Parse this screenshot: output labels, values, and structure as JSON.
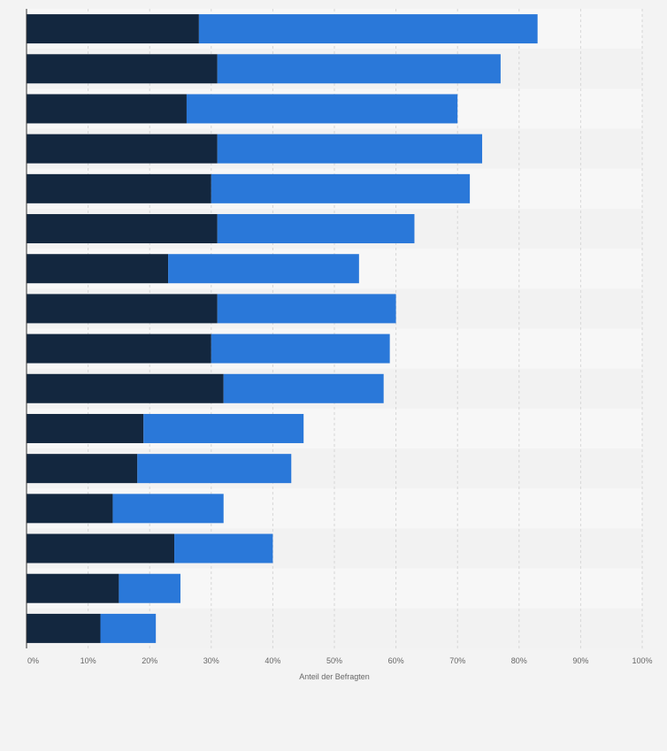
{
  "chart_data": {
    "type": "bar",
    "orientation": "horizontal",
    "stacked": true,
    "xlabel": "Anteil der Befragten",
    "xlim": [
      0,
      100
    ],
    "ticks": [
      "0%",
      "10%",
      "20%",
      "30%",
      "40%",
      "50%",
      "60%",
      "70%",
      "80%",
      "90%",
      "100%"
    ],
    "grid": true,
    "legend": "none",
    "colors": {
      "series1": "#13273f",
      "series2": "#2a78d9",
      "band_light": "#f7f7f7",
      "band_dark": "#f2f2f2",
      "grid": "#d6d6d6"
    },
    "series": [
      {
        "values": [
          28,
          31,
          26,
          31,
          30,
          31,
          23,
          31,
          30,
          32,
          19,
          18,
          14,
          24,
          15,
          12
        ]
      },
      {
        "values": [
          55,
          46,
          44,
          43,
          42,
          32,
          31,
          29,
          29,
          26,
          26,
          25,
          18,
          16,
          10,
          9
        ]
      }
    ]
  }
}
